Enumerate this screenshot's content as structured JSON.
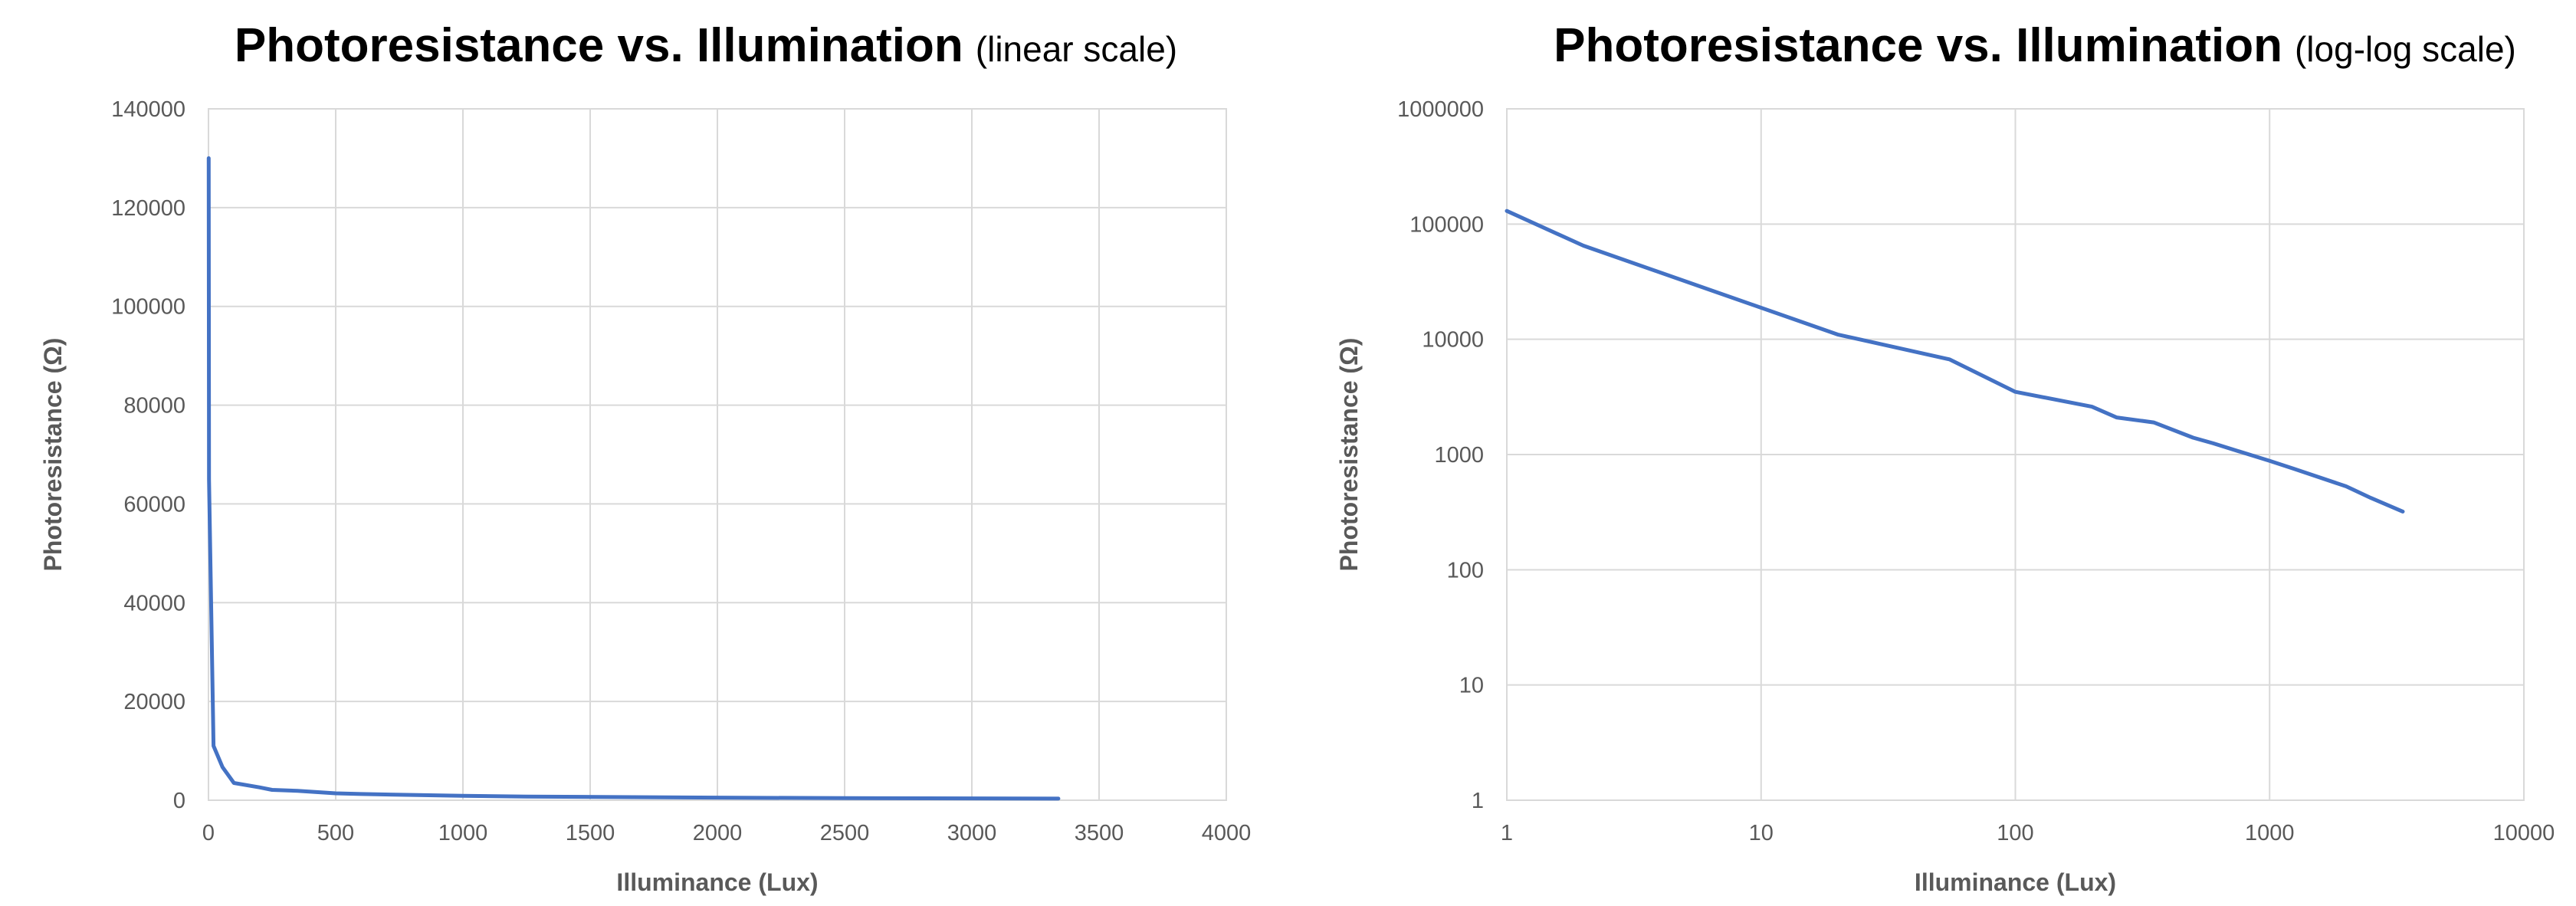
{
  "chart_data": [
    {
      "type": "line",
      "title": "Photoresistance vs. Illumination",
      "title_suffix": "(linear scale)",
      "xlabel": "Illuminance (Lux)",
      "ylabel": "Photoresistance (Ω)",
      "x_scale": "linear",
      "y_scale": "linear",
      "xlim": [
        0,
        4000
      ],
      "ylim": [
        0,
        140000
      ],
      "x_ticks": [
        0,
        500,
        1000,
        1500,
        2000,
        2500,
        3000,
        3500,
        4000
      ],
      "x_tick_labels": [
        "0",
        "500",
        "1000",
        "1500",
        "2000",
        "2500",
        "3000",
        "3500",
        "4000"
      ],
      "y_ticks": [
        0,
        20000,
        40000,
        60000,
        80000,
        100000,
        120000,
        140000
      ],
      "y_tick_labels": [
        "0",
        "20000",
        "40000",
        "60000",
        "80000",
        "100000",
        "120000",
        "140000"
      ],
      "grid": true,
      "line_color": "#4472c4",
      "series": [
        {
          "x": [
            1,
            2,
            20,
            55,
            100,
            200,
            250,
            350,
            500,
            600,
            1000,
            1250,
            2000,
            2500,
            3340
          ],
          "y": [
            130000,
            65000,
            11000,
            6700,
            3500,
            2600,
            2100,
            1900,
            1400,
            1250,
            880,
            750,
            530,
            420,
            320
          ]
        }
      ]
    },
    {
      "type": "line",
      "title": "Photoresistance vs. Illumination",
      "title_suffix": "(log-log scale)",
      "xlabel": "Illuminance (Lux)",
      "ylabel": "Photoresistance (Ω)",
      "x_scale": "log",
      "y_scale": "log",
      "xlim": [
        1,
        10000
      ],
      "ylim": [
        1,
        1000000
      ],
      "x_ticks": [
        1,
        10,
        100,
        1000,
        10000
      ],
      "x_tick_labels": [
        "1",
        "10",
        "100",
        "1000",
        "10000"
      ],
      "y_ticks": [
        1,
        10,
        100,
        1000,
        10000,
        100000,
        1000000
      ],
      "y_tick_labels": [
        "1",
        "10",
        "100",
        "1000",
        "10000",
        "100000",
        "1000000"
      ],
      "grid": true,
      "line_color": "#4472c4",
      "series": [
        {
          "x": [
            1,
            2,
            20,
            55,
            100,
            200,
            250,
            350,
            500,
            600,
            1000,
            1250,
            2000,
            2500,
            3340
          ],
          "y": [
            130000,
            65000,
            11000,
            6700,
            3500,
            2600,
            2100,
            1900,
            1400,
            1250,
            880,
            750,
            530,
            420,
            320
          ]
        }
      ]
    }
  ]
}
